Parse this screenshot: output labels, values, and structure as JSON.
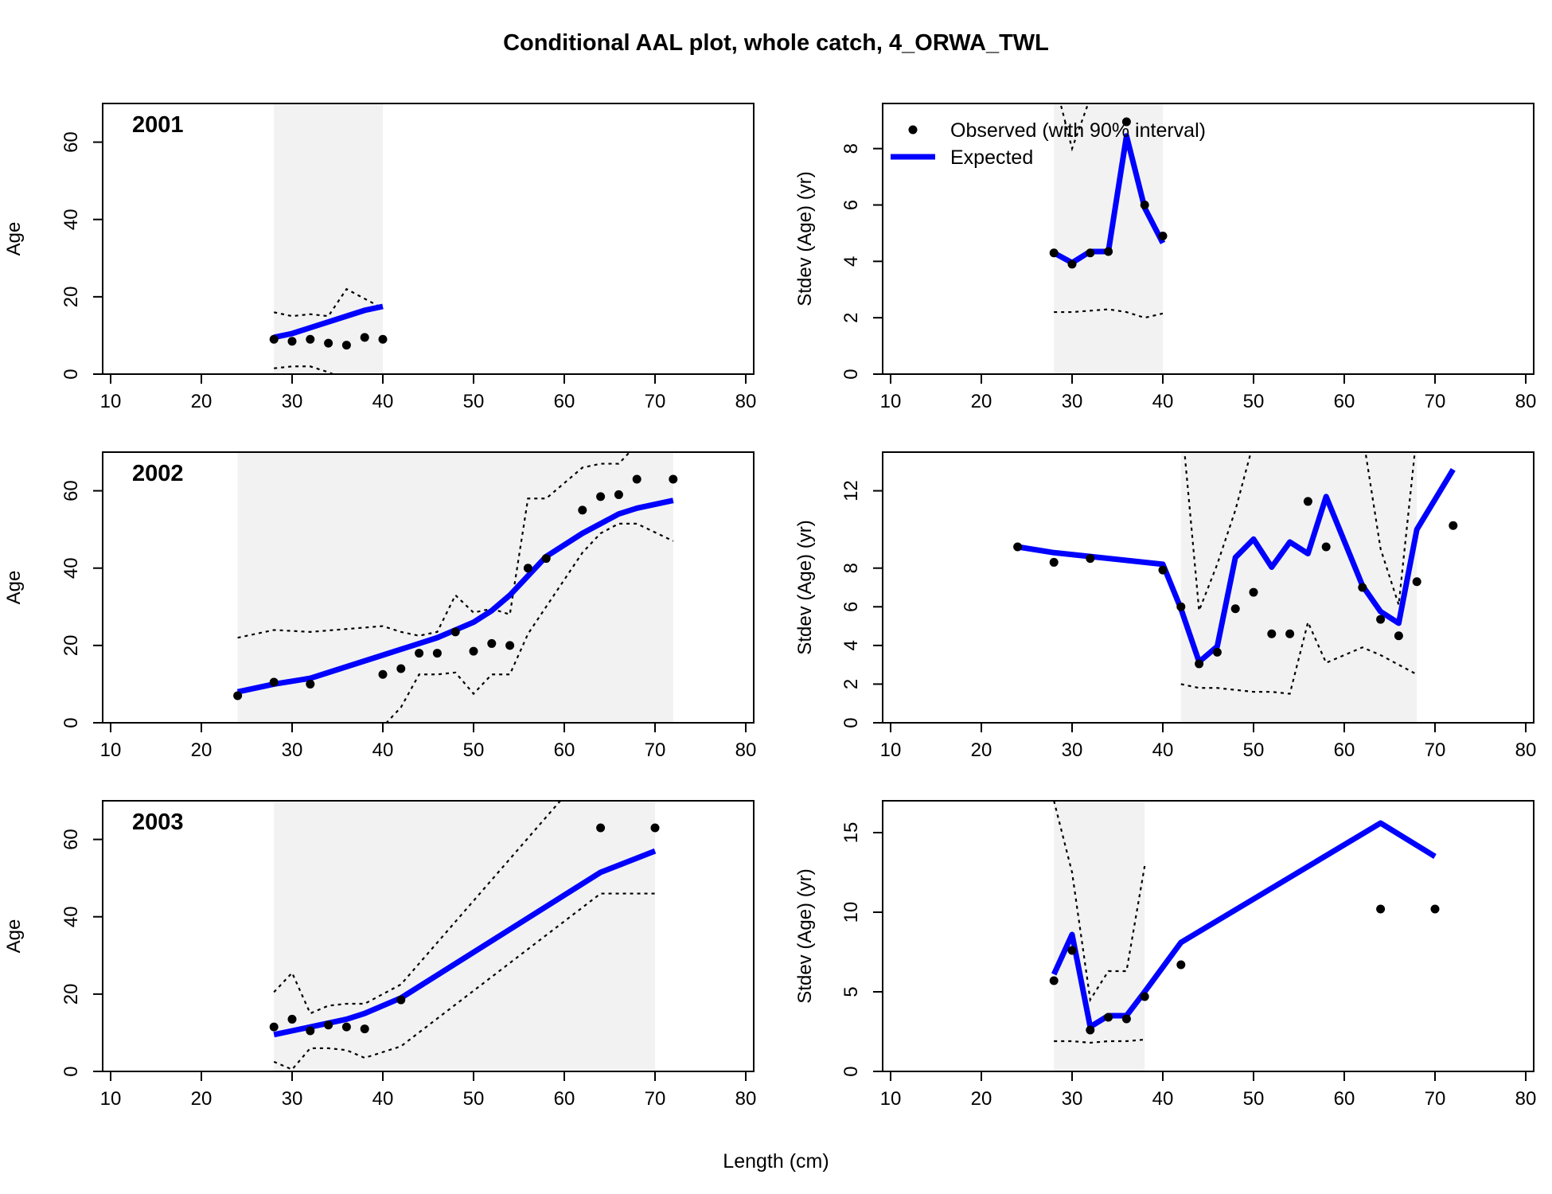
{
  "title": "Conditional AAL plot, whole catch, 4_ORWA_TWL",
  "x_label": "Length (cm)",
  "legend": {
    "observed": "Observed (with 90% interval)",
    "expected": "Expected"
  },
  "colors": {
    "expected": "#0000ff",
    "observed": "#000000",
    "band": "#f2f2f2",
    "interval": "#000000"
  },
  "chart_data": [
    {
      "type": "line",
      "panel": "age",
      "year": "2001",
      "xlabel": "",
      "ylabel": "Age",
      "xlim": [
        10,
        80
      ],
      "ylim": [
        0,
        70
      ],
      "x_ticks": [
        10,
        20,
        30,
        40,
        50,
        60,
        70,
        80
      ],
      "y_ticks": [
        0,
        20,
        40,
        60
      ],
      "x": [
        28,
        30,
        32,
        34,
        36,
        38,
        40
      ],
      "observed": [
        9,
        8.5,
        9,
        8,
        7.5,
        9.5,
        9
      ],
      "expected": [
        9.5,
        10.5,
        12,
        13.5,
        15,
        16.5,
        17.5
      ],
      "lower": [
        1.5,
        2,
        2,
        0.5,
        -1.5,
        -1.5,
        -1
      ],
      "upper": [
        16,
        15,
        15.5,
        15,
        22,
        19.5,
        17
      ],
      "band_x": [
        28,
        40
      ]
    },
    {
      "type": "line",
      "panel": "stdev",
      "xlabel": "",
      "ylabel": "Stdev (Age) (yr)",
      "xlim": [
        10,
        80
      ],
      "ylim": [
        0,
        9.6
      ],
      "x_ticks": [
        10,
        20,
        30,
        40,
        50,
        60,
        70,
        80
      ],
      "y_ticks": [
        0,
        2,
        4,
        6,
        8
      ],
      "x": [
        28,
        30,
        32,
        34,
        36,
        38,
        40
      ],
      "observed": [
        4.3,
        3.9,
        4.3,
        4.35,
        8.95,
        6,
        4.9
      ],
      "expected": [
        4.3,
        3.95,
        4.35,
        4.35,
        8.45,
        5.9,
        4.65
      ],
      "lower": [
        2.2,
        2.2,
        2.25,
        2.3,
        2.2,
        2.0,
        2.15
      ],
      "upper": [
        10.5,
        8.0,
        9.8,
        11,
        11,
        11,
        11
      ],
      "band_x": [
        28,
        40
      ]
    },
    {
      "type": "line",
      "panel": "age",
      "year": "2002",
      "xlabel": "",
      "ylabel": "Age",
      "xlim": [
        10,
        80
      ],
      "ylim": [
        0,
        70
      ],
      "x_ticks": [
        10,
        20,
        30,
        40,
        50,
        60,
        70,
        80
      ],
      "y_ticks": [
        0,
        20,
        40,
        60
      ],
      "x": [
        24,
        28,
        32,
        40,
        42,
        44,
        46,
        48,
        50,
        52,
        54,
        56,
        58,
        62,
        64,
        66,
        68,
        72
      ],
      "observed": [
        7,
        10.5,
        10,
        12.5,
        14,
        18,
        18,
        23.5,
        18.5,
        20.5,
        20,
        40,
        42.5,
        55,
        58.5,
        59,
        63,
        63
      ],
      "expected": [
        8,
        10,
        11.5,
        17.5,
        19,
        20.5,
        22,
        24,
        26,
        29,
        33,
        38,
        43,
        49,
        51.5,
        54,
        55.5,
        57.5
      ],
      "lower": [
        -2,
        -3,
        -2,
        -1,
        4,
        12.5,
        12.5,
        13,
        7.5,
        12.5,
        12.5,
        23,
        30,
        44,
        49,
        51.5,
        51.5,
        47
      ],
      "upper": [
        22,
        24,
        23.5,
        25,
        23.5,
        22.5,
        23.5,
        33,
        28.5,
        29.5,
        28,
        58,
        58,
        66,
        67,
        67,
        72,
        75
      ],
      "band_x": [
        24,
        72
      ]
    },
    {
      "type": "line",
      "panel": "stdev",
      "xlabel": "",
      "ylabel": "Stdev (Age) (yr)",
      "xlim": [
        10,
        80
      ],
      "ylim": [
        0,
        14
      ],
      "x_ticks": [
        10,
        20,
        30,
        40,
        50,
        60,
        70,
        80
      ],
      "y_ticks": [
        0,
        2,
        4,
        6,
        8,
        12
      ],
      "x": [
        24,
        28,
        32,
        40,
        42,
        44,
        46,
        48,
        50,
        52,
        54,
        56,
        58,
        62,
        64,
        66,
        68,
        72
      ],
      "observed": [
        9.1,
        8.3,
        8.5,
        7.9,
        6,
        3.05,
        3.65,
        5.9,
        6.75,
        4.6,
        4.6,
        11.45,
        9.1,
        7,
        5.35,
        4.5,
        7.3,
        10.2
      ],
      "expected": [
        9.1,
        8.8,
        8.6,
        8.2,
        5.9,
        3.15,
        3.95,
        8.55,
        9.5,
        8.05,
        9.35,
        8.75,
        11.7,
        7.1,
        5.75,
        5.15,
        10,
        13.1
      ],
      "lower": [
        null,
        null,
        null,
        null,
        2.0,
        1.8,
        1.8,
        1.7,
        1.6,
        1.6,
        1.5,
        5.2,
        3.1,
        3.9,
        3.5,
        3.0,
        2.5,
        null
      ],
      "upper": [
        null,
        null,
        null,
        null,
        16,
        5.8,
        8.2,
        11,
        14.5,
        15,
        15,
        15,
        15,
        15,
        9,
        6.1,
        15,
        null
      ],
      "band_x": [
        42,
        68
      ]
    },
    {
      "type": "line",
      "panel": "age",
      "year": "2003",
      "xlabel": "",
      "ylabel": "Age",
      "xlim": [
        10,
        80
      ],
      "ylim": [
        0,
        70
      ],
      "x_ticks": [
        10,
        20,
        30,
        40,
        50,
        60,
        70,
        80
      ],
      "y_ticks": [
        0,
        20,
        40,
        60
      ],
      "x": [
        28,
        30,
        32,
        34,
        36,
        38,
        42,
        64,
        70
      ],
      "observed": [
        11.5,
        13.5,
        10.5,
        12,
        11.5,
        11,
        18.5,
        63,
        63
      ],
      "expected": [
        9.5,
        10.5,
        11.5,
        12.5,
        13.5,
        15,
        19,
        51.5,
        57
      ],
      "lower": [
        2.5,
        0.5,
        6,
        6,
        5.5,
        3.5,
        6.5,
        46,
        46
      ],
      "upper": [
        20.5,
        25.5,
        15,
        17,
        17.5,
        17.5,
        22.5,
        82,
        95
      ],
      "band_x": [
        28,
        70
      ]
    },
    {
      "type": "line",
      "panel": "stdev",
      "xlabel": "",
      "ylabel": "Stdev (Age) (yr)",
      "xlim": [
        10,
        80
      ],
      "ylim": [
        0,
        17
      ],
      "x_ticks": [
        10,
        20,
        30,
        40,
        50,
        60,
        70,
        80
      ],
      "y_ticks": [
        0,
        5,
        10,
        15
      ],
      "x": [
        28,
        30,
        32,
        34,
        36,
        38,
        42,
        64,
        70
      ],
      "observed": [
        5.7,
        7.6,
        2.6,
        3.4,
        3.3,
        4.7,
        6.7,
        10.2,
        10.2
      ],
      "expected": [
        6.1,
        8.6,
        2.8,
        3.5,
        3.5,
        5.0,
        8.1,
        15.6,
        13.5
      ],
      "lower": [
        1.9,
        1.9,
        1.8,
        1.9,
        1.9,
        2.0,
        null,
        null,
        null
      ],
      "upper": [
        17,
        12.5,
        4.5,
        6.3,
        6.3,
        12.9,
        null,
        null,
        null
      ],
      "band_x": [
        28,
        38
      ]
    }
  ]
}
